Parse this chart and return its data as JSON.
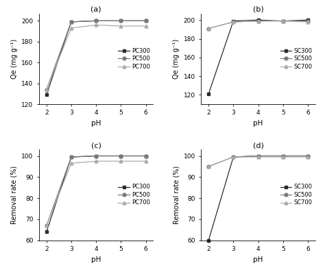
{
  "pH": [
    2,
    3,
    4,
    5,
    6
  ],
  "a_PC300": [
    129,
    199,
    200,
    200,
    200
  ],
  "a_PC500": [
    134,
    199,
    200,
    200,
    200
  ],
  "a_PC700": [
    134,
    193,
    196,
    195,
    195
  ],
  "b_SC300": [
    121,
    199,
    200,
    199,
    200
  ],
  "b_SC500": [
    191,
    198,
    199,
    199,
    199
  ],
  "b_SC700": [
    191,
    198,
    199,
    199,
    198
  ],
  "c_PC300": [
    64,
    99.5,
    100,
    100,
    100
  ],
  "c_PC500": [
    67,
    99.5,
    100,
    100,
    100
  ],
  "c_PC700": [
    67,
    96.5,
    97.5,
    97.5,
    97.5
  ],
  "d_SC300": [
    60,
    99.5,
    100,
    100,
    100
  ],
  "d_SC500": [
    95,
    99.5,
    100,
    100,
    100
  ],
  "d_SC700": [
    95,
    99.5,
    99.5,
    99.5,
    99.5
  ],
  "color_dark": "#2b2b2b",
  "color_mid": "#7a7a7a",
  "color_light": "#aaaaaa",
  "label_a": "(a)",
  "label_b": "(b)",
  "label_c": "(c)",
  "label_d": "(d)",
  "ylabel_qe": "Qe (mg g⁻¹)",
  "ylabel_removal": "Removal rate (%)",
  "xlabel": "pH",
  "legend_a": [
    "PC300",
    "PC500",
    "PC700"
  ],
  "legend_b": [
    "SC300",
    "SC500",
    "SC700"
  ],
  "legend_c": [
    "PC300",
    "PC500",
    "PC700"
  ],
  "legend_d": [
    "SC300",
    "SC500",
    "SC700"
  ],
  "ylim_a": [
    120,
    207
  ],
  "ylim_b": [
    110,
    207
  ],
  "ylim_c": [
    60,
    103
  ],
  "ylim_d": [
    60,
    103
  ],
  "yticks_a": [
    120,
    140,
    160,
    180,
    200
  ],
  "yticks_b": [
    120,
    140,
    160,
    180,
    200
  ],
  "yticks_c": [
    60,
    70,
    80,
    90,
    100
  ],
  "yticks_d": [
    60,
    70,
    80,
    90,
    100
  ]
}
